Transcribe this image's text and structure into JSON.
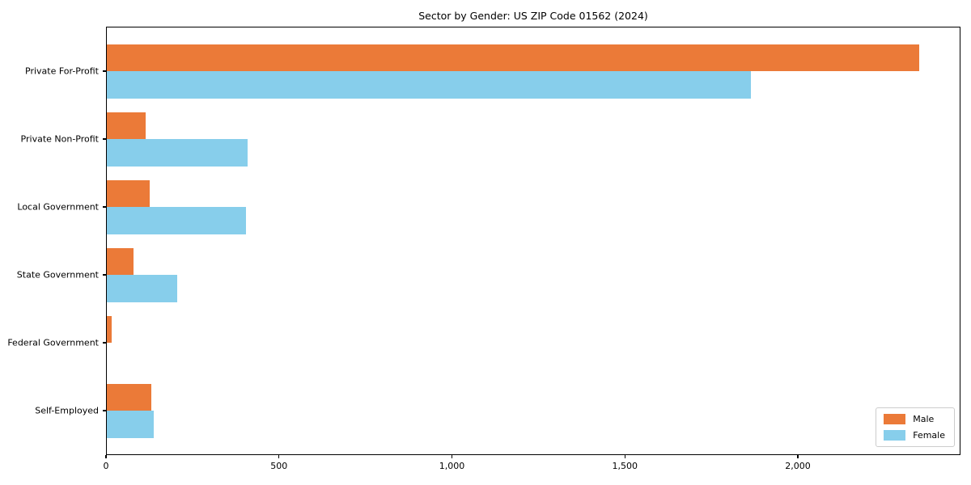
{
  "chart_data": {
    "type": "bar",
    "orientation": "horizontal",
    "title": "Sector by Gender: US ZIP Code 01562 (2024)",
    "categories": [
      "Private For-Profit",
      "Private Non-Profit",
      "Local Government",
      "State Government",
      "Federal Government",
      "Self-Employed"
    ],
    "series": [
      {
        "name": "Male",
        "color": "#EB7A38",
        "values": [
          2350,
          115,
          127,
          80,
          17,
          132
        ]
      },
      {
        "name": "Female",
        "color": "#87CEEB",
        "values": [
          1865,
          410,
          404,
          206,
          0,
          138
        ]
      }
    ],
    "xlabel": "",
    "ylabel": "",
    "xlim": [
      0,
      2470
    ],
    "xticks": [
      {
        "value": 0,
        "label": "0"
      },
      {
        "value": 500,
        "label": "500"
      },
      {
        "value": 1000,
        "label": "1,000"
      },
      {
        "value": 1500,
        "label": "1,500"
      },
      {
        "value": 2000,
        "label": "2,000"
      }
    ],
    "grid": false,
    "legend_position": "lower right",
    "frame_color": "#000000",
    "background_color": "#ffffff"
  }
}
